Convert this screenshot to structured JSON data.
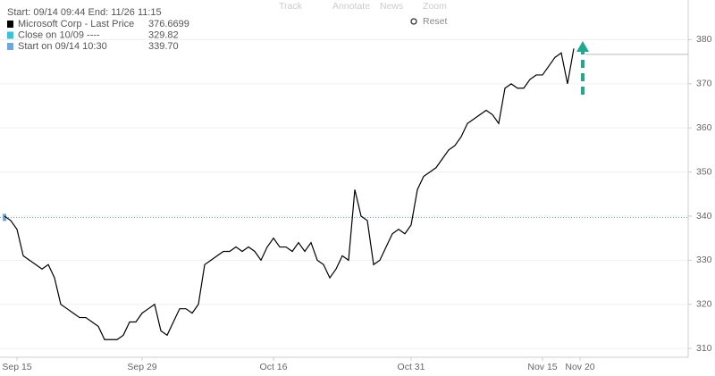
{
  "toolbar": [
    "Track",
    "Annotate",
    "News",
    "Zoom",
    "Reset"
  ],
  "chart_data": {
    "type": "line",
    "subtitle": "Start: 09/14 09:44 End: 11/26 11:15",
    "categories": [
      null,
      null,
      "Sep 15",
      null,
      null,
      null,
      null,
      null,
      null,
      null,
      null,
      null,
      null,
      null,
      null,
      null,
      null,
      null,
      null,
      null,
      null,
      null,
      "Sep 29",
      null,
      null,
      null,
      null,
      null,
      null,
      null,
      null,
      null,
      null,
      null,
      null,
      null,
      null,
      null,
      null,
      null,
      null,
      null,
      null,
      "Oct 16",
      null,
      null,
      null,
      null,
      null,
      null,
      null,
      null,
      null,
      null,
      null,
      null,
      null,
      null,
      null,
      null,
      null,
      null,
      null,
      null,
      null,
      "Oct 31",
      null,
      null,
      null,
      null,
      null,
      null,
      null,
      null,
      null,
      null,
      null,
      null,
      null,
      null,
      null,
      null,
      null,
      null,
      null,
      null,
      "Nov 15",
      null,
      null,
      null,
      null,
      null,
      "Nov 20"
    ],
    "series": [
      {
        "name": "Microsoft Corp - Last Price",
        "color": "#000000",
        "last_value": 376.6699,
        "values": [
          340,
          339,
          337,
          331,
          330,
          329,
          328,
          329,
          326,
          320,
          319,
          318,
          317,
          317,
          316,
          315,
          312,
          312,
          312,
          313,
          316,
          316,
          318,
          319,
          320,
          314,
          313,
          316,
          319,
          319,
          318,
          320,
          329,
          330,
          331,
          332,
          332,
          333,
          332,
          333,
          332,
          330,
          333,
          335,
          333,
          333,
          332,
          334,
          332,
          334,
          330,
          329,
          326,
          328,
          331,
          330,
          346,
          340,
          339,
          329,
          330,
          333,
          336,
          337,
          336,
          338,
          346,
          349,
          350,
          351,
          353,
          355,
          356,
          358,
          361,
          362,
          363,
          364,
          363,
          361,
          369,
          370,
          369,
          369,
          371,
          372,
          372,
          374,
          376,
          377,
          370,
          378,
          null
        ]
      }
    ],
    "reference_lines": [
      {
        "name": "Close on 10/09 ----",
        "color": "#2ec4e6",
        "value": 329.82
      },
      {
        "name": "Start on 09/14 10:30",
        "color": "#6aa6e8",
        "value": 339.7,
        "value_label": "339.70"
      }
    ],
    "ylim": [
      308,
      389
    ],
    "yticks": [
      310,
      320,
      330,
      340,
      350,
      360,
      370,
      380
    ],
    "grid": true
  }
}
